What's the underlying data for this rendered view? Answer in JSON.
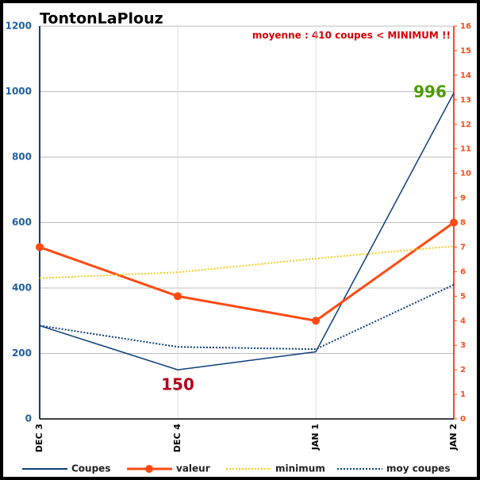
{
  "chart_data": {
    "type": "line",
    "title": "TontonLaPlouz",
    "annotation": "moyenne : 410 coupes < MINIMUM !!",
    "categories": [
      "DEC 3",
      "DEC 4",
      "JAN 1",
      "JAN 2"
    ],
    "series": [
      {
        "name": "Coupes",
        "color": "#0b3d7a",
        "dash": "solid",
        "values": [
          285,
          150,
          205,
          996
        ],
        "value_labels": [
          null,
          "150",
          null,
          "996"
        ],
        "label_colors": [
          null,
          "#b3001b",
          null,
          "#4e9a06"
        ]
      },
      {
        "name": "valeur",
        "color": "#ff4a12",
        "dash": "solid",
        "marker": true,
        "axis": "y2",
        "values": [
          7,
          5,
          4,
          8
        ]
      },
      {
        "name": "minimum",
        "color": "#f2cc1e",
        "dash": "dotted",
        "values": [
          430,
          448,
          490,
          528
        ]
      },
      {
        "name": "moy coupes",
        "color": "#0b3d7a",
        "dash": "dotted",
        "values": [
          285,
          220,
          213,
          410
        ]
      }
    ],
    "ylim": [
      0,
      1200
    ],
    "yticks": [
      0,
      200,
      400,
      600,
      800,
      1000,
      1200
    ],
    "y2lim": [
      0,
      16
    ],
    "y2ticks": [
      0,
      1,
      2,
      3,
      4,
      5,
      6,
      7,
      8,
      9,
      10,
      11,
      12,
      13,
      14,
      15,
      16
    ],
    "grid": true,
    "legend": "bottom"
  }
}
